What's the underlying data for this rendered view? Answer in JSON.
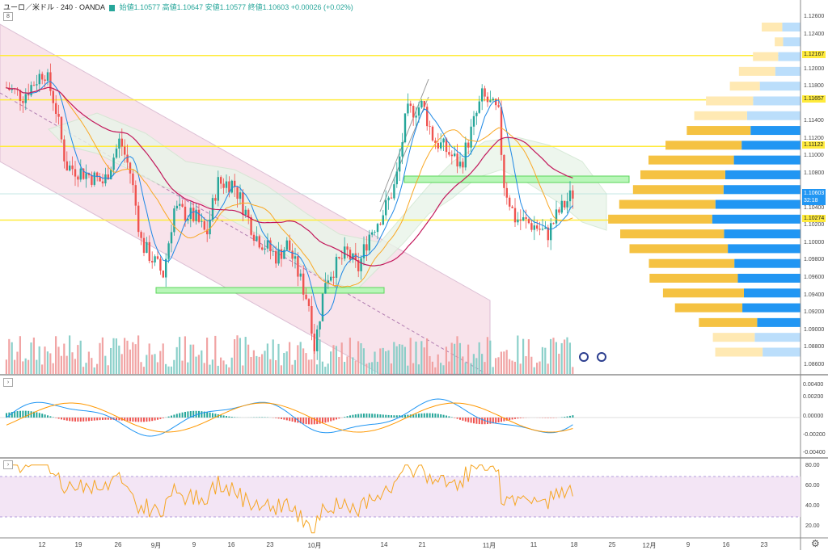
{
  "header": {
    "title": "ユーロ／米ドル · 240 · OANDA",
    "ohlc": "始値1.10577 高値1.10647 安値1.10577 終値1.10603 +0.00026 (+0.02%)",
    "pane_indicator_1": "8",
    "pane_indicator_2": "›",
    "pane_indicator_3": "›"
  },
  "colors": {
    "up": "#26a69a",
    "down": "#ef5350",
    "highlight_line": "#ffeb3b",
    "volume_profile_up": "#f5c242",
    "volume_profile_down": "#2196f3",
    "channel": "#e1bee7",
    "rsi_band": "#f3e5f5",
    "macd_line": "#2196f3",
    "signal_line": "#ff9800"
  },
  "price_axis": {
    "ticks": [
      "1.12600",
      "1.12400",
      "1.12000",
      "1.11800",
      "1.11400",
      "1.11200",
      "1.11000",
      "1.10800",
      "1.10400",
      "1.10200",
      "1.10000",
      "1.09800",
      "1.09600",
      "1.09400",
      "1.09200",
      "1.09000",
      "1.08800",
      "1.08600"
    ],
    "current_price": "1.10603",
    "countdown": "32:18"
  },
  "horizontal_levels": [
    {
      "label": "1.12167",
      "value": 1.12167
    },
    {
      "label": "1.11657",
      "value": 1.11657
    },
    {
      "label": "1.11122",
      "value": 1.11122
    },
    {
      "label": "1.10274",
      "value": 1.10274
    }
  ],
  "macd_axis": {
    "ticks": [
      "0.00400",
      "0.00200",
      "0.00000",
      "-0.00200",
      "-0.00400"
    ]
  },
  "rsi_axis": {
    "ticks": [
      "80.00",
      "60.00",
      "40.00",
      "20.00"
    ]
  },
  "time_axis": {
    "labels": [
      "12",
      "19",
      "26",
      "9月",
      "9",
      "16",
      "23",
      "10月",
      "14",
      "21",
      "11月",
      "11",
      "18",
      "25",
      "12月",
      "9",
      "16",
      "23"
    ]
  },
  "chart_data": [
    {
      "type": "candlestick",
      "title": "ユーロ／米ドル · 240 · OANDA",
      "ylim": [
        1.0855,
        1.1275
      ],
      "y_ticks": [
        1.126,
        1.124,
        1.122,
        1.12,
        1.118,
        1.116,
        1.114,
        1.112,
        1.11,
        1.108,
        1.106,
        1.104,
        1.102,
        1.1,
        1.098,
        1.096,
        1.094,
        1.092,
        1.09,
        1.088,
        1.086
      ],
      "close_path": [
        [
          "08-05",
          1.118
        ],
        [
          "08-08",
          1.117
        ],
        [
          "08-12",
          1.12
        ],
        [
          "08-14",
          1.116
        ],
        [
          "08-16",
          1.109
        ],
        [
          "08-20",
          1.108
        ],
        [
          "08-23",
          1.107
        ],
        [
          "08-26",
          1.112
        ],
        [
          "08-28",
          1.108
        ],
        [
          "08-30",
          1.1
        ],
        [
          "09-03",
          1.0965
        ],
        [
          "09-05",
          1.104
        ],
        [
          "09-09",
          1.103
        ],
        [
          "09-11",
          1.101
        ],
        [
          "09-13",
          1.107
        ],
        [
          "09-16",
          1.107
        ],
        [
          "09-18",
          1.104
        ],
        [
          "09-20",
          1.101
        ],
        [
          "09-24",
          1.0985
        ],
        [
          "09-26",
          1.1
        ],
        [
          "09-30",
          1.093
        ],
        [
          "10-01",
          1.088
        ],
        [
          "10-03",
          1.096
        ],
        [
          "10-07",
          1.099
        ],
        [
          "10-09",
          1.097
        ],
        [
          "10-11",
          1.101
        ],
        [
          "10-14",
          1.104
        ],
        [
          "10-16",
          1.107
        ],
        [
          "10-18",
          1.115
        ],
        [
          "10-21",
          1.116
        ],
        [
          "10-23",
          1.112
        ],
        [
          "10-25",
          1.111
        ],
        [
          "10-28",
          1.109
        ],
        [
          "10-30",
          1.113
        ],
        [
          "11-01",
          1.117
        ],
        [
          "11-04",
          1.115
        ],
        [
          "11-05",
          1.107
        ],
        [
          "11-07",
          1.103
        ],
        [
          "11-11",
          1.102
        ],
        [
          "11-13",
          1.101
        ],
        [
          "11-15",
          1.1035
        ],
        [
          "11-18",
          1.106
        ]
      ],
      "annotations": [
        "descending channel",
        "rising wedge",
        "ichimoku cloud",
        "support zone 1.0945",
        "resistance zone 1.1077"
      ]
    },
    {
      "type": "bar",
      "title": "MACD",
      "ylim": [
        -0.004,
        0.004
      ]
    },
    {
      "type": "line",
      "title": "RSI",
      "ylim": [
        10,
        85
      ],
      "band": [
        30,
        70
      ]
    }
  ]
}
